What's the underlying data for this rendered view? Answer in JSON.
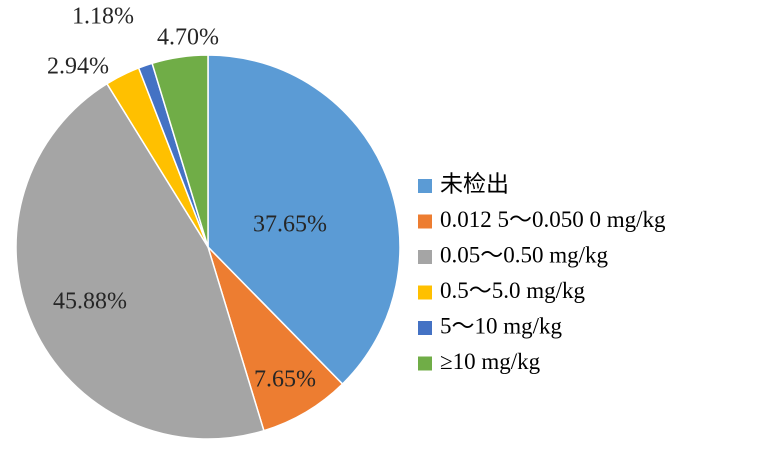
{
  "chart_data": {
    "type": "pie",
    "title": "",
    "slices": [
      {
        "label": "未检出",
        "value": 37.65,
        "display": "37.65%",
        "color": "#5b9bd5"
      },
      {
        "label": "0.012 5～0.050 0 mg/kg",
        "value": 7.65,
        "display": "7.65%",
        "color": "#ed7d31"
      },
      {
        "label": "0.05～0.50 mg/kg",
        "value": 45.88,
        "display": "45.88%",
        "color": "#a5a5a5"
      },
      {
        "label": "0.5～5.0 mg/kg",
        "value": 2.94,
        "display": "2.94%",
        "color": "#ffc000"
      },
      {
        "label": "5～10 mg/kg",
        "value": 1.18,
        "display": "1.18%",
        "color": "#4472c4"
      },
      {
        "label": "≥10 mg/kg",
        "value": 4.7,
        "display": "4.70%",
        "color": "#70ad47"
      }
    ],
    "legend_position": "right",
    "start_angle": "12 o'clock",
    "direction": "clockwise"
  }
}
